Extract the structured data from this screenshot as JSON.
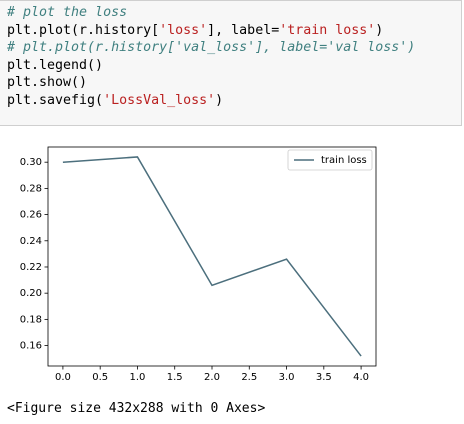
{
  "code": {
    "lines": [
      [
        "# plot the loss"
      ],
      [
        "plt.plot(r.history[",
        "'loss'",
        "], label=",
        "'train loss'",
        ")"
      ],
      [
        "# plt.plot(r.history['val_loss'], label='val loss')"
      ],
      [
        "plt.legend()"
      ],
      [
        "plt.show()"
      ],
      [
        "plt.savefig(",
        "'LossVal_loss'",
        ")"
      ]
    ]
  },
  "chart_data": {
    "type": "line",
    "x": [
      0,
      1,
      2,
      3,
      4
    ],
    "series": [
      {
        "name": "train loss",
        "color": "#4c6f7d",
        "values": [
          0.3,
          0.304,
          0.206,
          0.226,
          0.152
        ]
      }
    ],
    "xlim": [
      -0.2,
      4.2
    ],
    "xticks": [
      {
        "value": 0,
        "label": "0.0"
      },
      {
        "value": 0.5,
        "label": "0.5"
      },
      {
        "value": 1,
        "label": "1.0"
      },
      {
        "value": 1.5,
        "label": "1.5"
      },
      {
        "value": 2,
        "label": "2.0"
      },
      {
        "value": 2.5,
        "label": "2.5"
      },
      {
        "value": 3,
        "label": "3.0"
      },
      {
        "value": 3.5,
        "label": "3.5"
      },
      {
        "value": 4,
        "label": "4.0"
      }
    ],
    "ylim": [
      0.1444,
      0.3116
    ],
    "yticks": [
      {
        "value": 0.16,
        "label": "0.16"
      },
      {
        "value": 0.18,
        "label": "0.18"
      },
      {
        "value": 0.2,
        "label": "0.20"
      },
      {
        "value": 0.22,
        "label": "0.22"
      },
      {
        "value": 0.24,
        "label": "0.24"
      },
      {
        "value": 0.26,
        "label": "0.26"
      },
      {
        "value": 0.28,
        "label": "0.28"
      },
      {
        "value": 0.3,
        "label": "0.30"
      }
    ],
    "grid": false,
    "legend": "upper right"
  },
  "output": "<Figure size 432x288 with 0 Axes>"
}
